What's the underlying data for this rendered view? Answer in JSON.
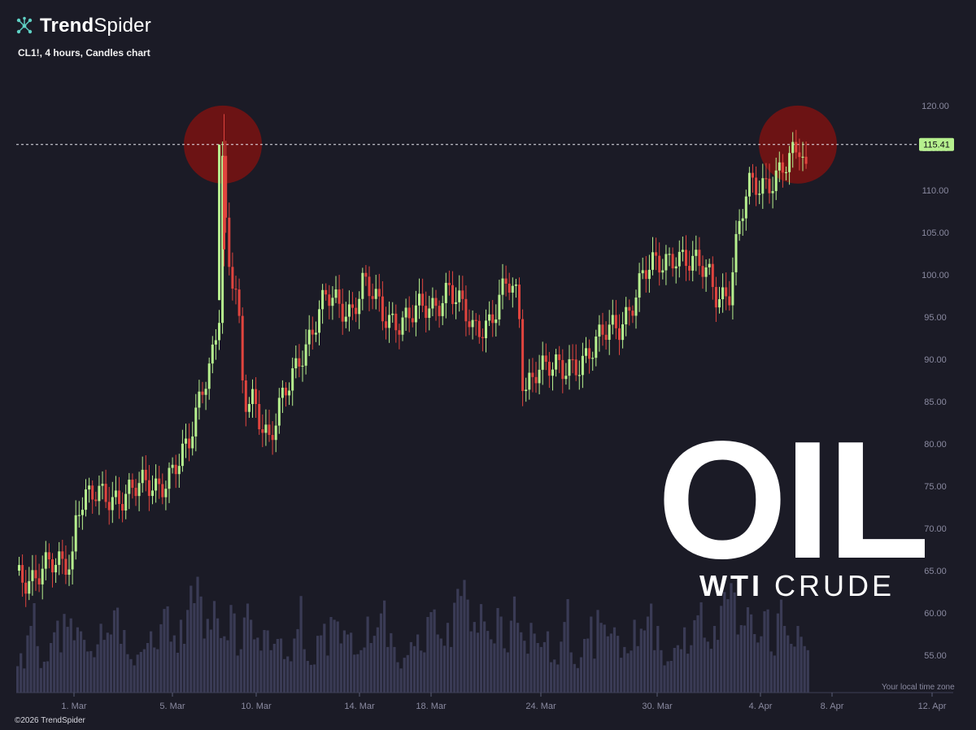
{
  "header": {
    "brand_bold": "Trend",
    "brand_light": "Spider",
    "logo_icon": "network-nodes-icon",
    "subtitle": "CL1!, 4 hours, Candles chart"
  },
  "overlay": {
    "big_text": "OIL",
    "sub_bold": "WTI",
    "sub_light": "CRUDE"
  },
  "footer": {
    "copyright": "©2026 TrendSpider",
    "timezone_note": "Your local time zone"
  },
  "colors": {
    "background": "#1b1b26",
    "up": "#b6f08e",
    "down": "#e0443e",
    "volume": "#3a3b55",
    "axis_text": "#8a8aa0",
    "price_badge": "#b6f08e",
    "highlight_circle": "#7a1212"
  },
  "chart_data": {
    "type": "candlestick",
    "symbol": "CL1!",
    "timeframe": "4 hours",
    "ylim": [
      50,
      122
    ],
    "y_ticks": [
      55,
      60,
      65,
      70,
      75,
      80,
      85,
      90,
      95,
      100,
      105,
      110,
      115,
      120
    ],
    "y_tick_labels": [
      "55.00",
      "60.00",
      "65.00",
      "70.00",
      "75.00",
      "80.00",
      "85.00",
      "90.00",
      "95.00",
      "100.00",
      "105.00",
      "110.00",
      "115.00",
      "120.00"
    ],
    "x_ticks": [
      "1. Mar",
      "5. Mar",
      "10. Mar",
      "14. Mar",
      "18. Mar",
      "24. Mar",
      "30. Mar",
      "4. Apr",
      "8. Apr",
      "12. Apr"
    ],
    "price_line": 115.41,
    "price_line_label": "115.41",
    "highlight_levels": [
      {
        "at": "first spike (9. Mar)",
        "price": 115.4
      },
      {
        "at": "latest high (7. Apr)",
        "price": 115.4
      }
    ],
    "key_points": [
      {
        "x": "start",
        "close": 65
      },
      {
        "x": "1. Mar",
        "close": 69
      },
      {
        "x": "5. Mar",
        "close": 78
      },
      {
        "x": "9. Mar",
        "high": 119,
        "close": 97
      },
      {
        "x": "10. Mar",
        "low": 77,
        "close": 85
      },
      {
        "x": "14. Mar",
        "close": 99
      },
      {
        "x": "22. Mar",
        "close": 100
      },
      {
        "x": "24. Mar",
        "low": 84,
        "close": 88
      },
      {
        "x": "30. Mar",
        "close": 103
      },
      {
        "x": "2. Apr",
        "low": 96,
        "close": 99
      },
      {
        "x": "4. Apr",
        "close": 110
      },
      {
        "x": "7. Apr",
        "high": 116,
        "close": 112
      }
    ]
  }
}
